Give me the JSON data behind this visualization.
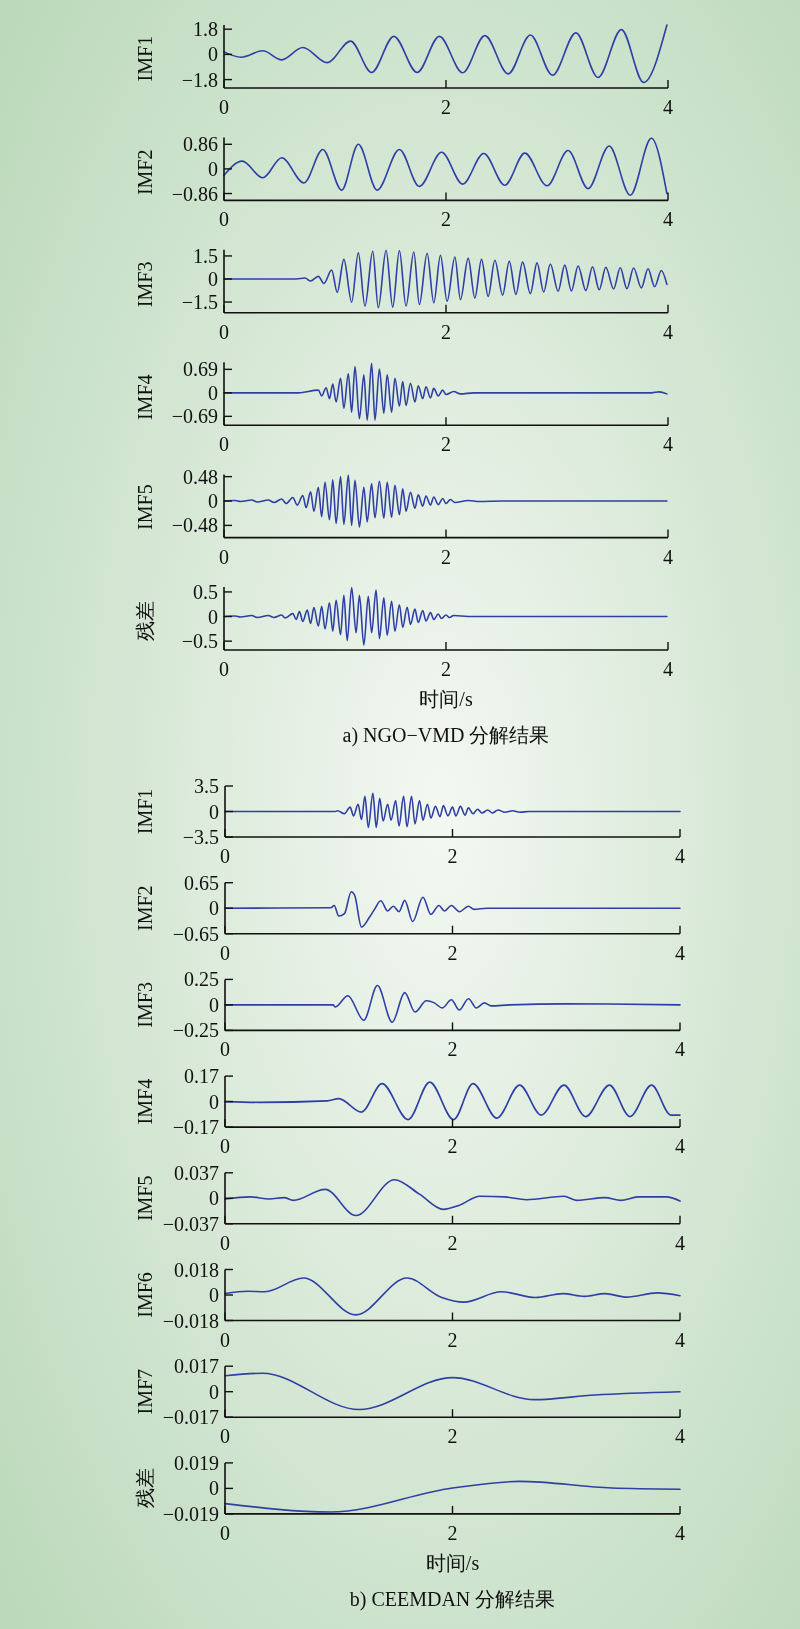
{
  "chart_data": [
    {
      "type": "line",
      "ylabel": "IMF1",
      "xlim": [
        0,
        4
      ],
      "xticks": [
        0,
        2,
        4
      ],
      "ylim": [
        -2.4,
        2.1
      ],
      "yticks": [
        -1.8,
        0,
        1.8
      ],
      "series": [
        {
          "color": "#2e3fa5",
          "x": [
            0,
            0.155,
            0.35,
            0.52,
            0.71,
            0.93,
            1.14,
            1.33,
            1.53,
            1.74,
            1.94,
            2.15,
            2.35,
            2.56,
            2.76,
            2.96,
            3.17,
            3.37,
            3.58,
            3.78,
            3.99
          ],
          "values": [
            0.18,
            -0.2,
            0.26,
            -0.39,
            0.49,
            -0.59,
            0.95,
            -1.29,
            1.29,
            -1.29,
            1.29,
            -1.31,
            1.34,
            -1.39,
            1.39,
            -1.49,
            1.54,
            -1.65,
            1.77,
            -2.0,
            2.1
          ]
        }
      ]
    },
    {
      "type": "line",
      "ylabel": "IMF2",
      "xlim": [
        0,
        4
      ],
      "xticks": [
        0,
        2,
        4
      ],
      "ylim": [
        -1.1,
        1.1
      ],
      "yticks": [
        -0.86,
        0,
        0.86
      ],
      "series": [
        {
          "color": "#2e3fa5",
          "x": [
            0,
            0.164,
            0.35,
            0.52,
            0.72,
            0.89,
            1.06,
            1.21,
            1.38,
            1.58,
            1.76,
            1.96,
            2.15,
            2.34,
            2.53,
            2.71,
            2.91,
            3.1,
            3.28,
            3.47,
            3.66,
            3.85,
            3.99
          ],
          "values": [
            -0.22,
            0.27,
            -0.31,
            0.39,
            -0.49,
            0.68,
            -0.74,
            0.86,
            -0.74,
            0.68,
            -0.61,
            0.58,
            -0.53,
            0.54,
            -0.57,
            0.55,
            -0.59,
            0.64,
            -0.69,
            0.8,
            -0.92,
            1.07,
            -0.86
          ]
        }
      ]
    },
    {
      "type": "line",
      "ylabel": "IMF3",
      "xlim": [
        0,
        4
      ],
      "xticks": [
        0,
        2,
        4
      ],
      "ylim": [
        -2.2,
        1.9
      ],
      "yticks": [
        -1.5,
        0,
        1.5
      ],
      "series": [
        {
          "color": "#2e3fa5",
          "x": [
            0,
            0.65,
            0.73,
            0.78,
            0.85,
            0.9,
            0.97,
            1.02,
            1.08,
            1.15,
            1.21,
            1.27,
            1.34,
            1.39,
            1.46,
            1.52,
            1.58,
            1.64,
            1.71,
            1.76,
            1.83,
            1.89,
            1.95,
            2.01,
            2.08,
            2.13,
            2.2,
            2.26,
            2.32,
            2.38,
            2.44,
            2.51,
            2.57,
            2.63,
            2.69,
            2.76,
            2.82,
            2.88,
            2.94,
            3.01,
            3.07,
            3.13,
            3.19,
            3.26,
            3.32,
            3.38,
            3.44,
            3.51,
            3.57,
            3.63,
            3.69,
            3.76,
            3.82,
            3.88,
            3.94,
            3.99
          ],
          "values": [
            0,
            0,
            0.06,
            -0.13,
            0.17,
            -0.29,
            0.59,
            -0.88,
            1.28,
            -1.51,
            1.7,
            -1.76,
            1.81,
            -1.87,
            1.87,
            -1.83,
            1.85,
            -1.76,
            1.76,
            -1.66,
            1.68,
            -1.55,
            1.55,
            -1.45,
            1.43,
            -1.34,
            1.34,
            -1.24,
            1.28,
            -1.13,
            1.22,
            -1.05,
            1.15,
            -1.0,
            1.1,
            -0.95,
            1.05,
            -0.85,
            0.98,
            -0.8,
            0.9,
            -0.78,
            0.85,
            -0.75,
            0.8,
            -0.7,
            0.76,
            -0.65,
            0.73,
            -0.63,
            0.72,
            -0.58,
            0.67,
            -0.5,
            0.55,
            -0.35
          ]
        }
      ]
    },
    {
      "type": "line",
      "ylabel": "IMF4",
      "xlim": [
        0,
        4
      ],
      "xticks": [
        0,
        2,
        4
      ],
      "ylim": [
        -0.95,
        0.9
      ],
      "yticks": [
        -0.69,
        0,
        0.69
      ],
      "series": [
        {
          "color": "#2e3fa5",
          "x": [
            0,
            0.67,
            0.85,
            0.88,
            0.92,
            0.95,
            0.98,
            1.01,
            1.05,
            1.08,
            1.12,
            1.15,
            1.18,
            1.22,
            1.26,
            1.29,
            1.33,
            1.36,
            1.4,
            1.44,
            1.47,
            1.51,
            1.54,
            1.58,
            1.61,
            1.64,
            1.68,
            1.72,
            1.75,
            1.79,
            1.82,
            1.86,
            1.89,
            1.93,
            1.97,
            2.0,
            2.07,
            2.13,
            2.25,
            3.85,
            3.92,
            3.99
          ],
          "values": [
            0,
            0,
            0.08,
            -0.09,
            0.15,
            -0.17,
            0.26,
            -0.27,
            0.43,
            -0.45,
            0.56,
            -0.57,
            0.77,
            -0.76,
            0.53,
            -0.8,
            0.87,
            -0.8,
            0.7,
            -0.6,
            0.53,
            -0.57,
            0.43,
            -0.39,
            0.33,
            -0.37,
            0.28,
            -0.27,
            0.21,
            -0.17,
            0.18,
            -0.15,
            0.13,
            -0.09,
            0.08,
            -0.05,
            0.04,
            -0.03,
            0,
            0,
            0.03,
            -0.03
          ]
        }
      ]
    },
    {
      "type": "line",
      "ylabel": "IMF5",
      "xlim": [
        0,
        4
      ],
      "xticks": [
        0,
        2,
        4
      ],
      "ylim": [
        -0.72,
        0.52
      ],
      "yticks": [
        -0.48,
        0,
        0.48
      ],
      "series": [
        {
          "color": "#2e3fa5",
          "x": [
            0,
            0.1,
            0.15,
            0.25,
            0.3,
            0.4,
            0.45,
            0.52,
            0.56,
            0.62,
            0.66,
            0.71,
            0.74,
            0.78,
            0.81,
            0.85,
            0.88,
            0.91,
            0.95,
            0.98,
            1.01,
            1.05,
            1.08,
            1.12,
            1.15,
            1.18,
            1.22,
            1.26,
            1.29,
            1.33,
            1.36,
            1.4,
            1.44,
            1.47,
            1.51,
            1.54,
            1.58,
            1.61,
            1.64,
            1.68,
            1.72,
            1.75,
            1.79,
            1.82,
            1.86,
            1.89,
            1.93,
            1.97,
            2.0,
            2.04,
            2.08,
            2.2,
            2.3,
            2.5,
            3.9,
            3.99
          ],
          "values": [
            0,
            0.01,
            -0.01,
            0.02,
            -0.02,
            0.02,
            -0.03,
            0.04,
            -0.05,
            0.07,
            -0.08,
            0.11,
            -0.13,
            0.18,
            -0.2,
            0.27,
            -0.31,
            0.37,
            -0.37,
            0.42,
            -0.44,
            0.48,
            -0.46,
            0.51,
            -0.48,
            0.41,
            -0.51,
            0.27,
            -0.41,
            0.34,
            -0.33,
            0.39,
            -0.34,
            0.37,
            -0.32,
            0.31,
            -0.27,
            0.24,
            -0.2,
            0.17,
            -0.14,
            0.12,
            -0.1,
            0.1,
            -0.08,
            0.08,
            -0.07,
            0.05,
            -0.05,
            0.03,
            -0.03,
            0.01,
            -0.01,
            0,
            0,
            0
          ]
        }
      ]
    },
    {
      "type": "line",
      "ylabel": "残差",
      "xlabel": "时间/s",
      "annotations": [
        "a) NGO−VMD 分解结果"
      ],
      "xlim": [
        0,
        4
      ],
      "xticks": [
        0,
        2,
        4
      ],
      "ylim": [
        -0.68,
        0.6
      ],
      "yticks": [
        -0.5,
        0,
        0.5
      ],
      "series": [
        {
          "color": "#2e3fa5",
          "x": [
            0,
            0.1,
            0.15,
            0.25,
            0.3,
            0.4,
            0.45,
            0.52,
            0.55,
            0.62,
            0.65,
            0.68,
            0.71,
            0.75,
            0.78,
            0.81,
            0.85,
            0.88,
            0.91,
            0.95,
            0.98,
            1.01,
            1.05,
            1.08,
            1.11,
            1.15,
            1.19,
            1.22,
            1.26,
            1.3,
            1.33,
            1.37,
            1.4,
            1.44,
            1.47,
            1.51,
            1.54,
            1.58,
            1.61,
            1.65,
            1.68,
            1.72,
            1.75,
            1.79,
            1.82,
            1.86,
            1.89,
            1.93,
            1.96,
            2.0,
            2.03,
            2.07,
            2.2,
            3.9,
            3.99
          ],
          "values": [
            0,
            0.01,
            -0.01,
            0.02,
            -0.02,
            0.02,
            -0.02,
            0.03,
            -0.03,
            0.06,
            -0.06,
            0.1,
            -0.1,
            0.13,
            -0.14,
            0.18,
            -0.19,
            0.21,
            -0.25,
            0.28,
            -0.3,
            0.33,
            -0.37,
            0.43,
            -0.49,
            0.59,
            -0.33,
            0.43,
            -0.58,
            0.41,
            -0.33,
            0.54,
            -0.45,
            0.38,
            -0.38,
            0.31,
            -0.3,
            0.24,
            -0.22,
            0.19,
            -0.16,
            0.15,
            -0.12,
            0.12,
            -0.09,
            0.08,
            -0.06,
            0.05,
            -0.04,
            0.03,
            -0.02,
            0.02,
            0,
            0,
            0
          ]
        }
      ]
    },
    {
      "type": "line",
      "ylabel": "IMF1",
      "xlim": [
        0,
        4
      ],
      "xticks": [
        0,
        2,
        4
      ],
      "ylim": [
        -3.5,
        3.5
      ],
      "yticks": [
        -3.5,
        0,
        3.5
      ],
      "series": [
        {
          "color": "#2e3fa5",
          "x": [
            0,
            0.97,
            0.99,
            1.05,
            1.1,
            1.13,
            1.17,
            1.2,
            1.23,
            1.26,
            1.3,
            1.33,
            1.36,
            1.39,
            1.43,
            1.46,
            1.5,
            1.53,
            1.57,
            1.6,
            1.64,
            1.67,
            1.71,
            1.74,
            1.78,
            1.81,
            1.85,
            1.89,
            1.92,
            1.96,
            2.0,
            2.03,
            2.07,
            2.11,
            2.14,
            2.18,
            2.22,
            2.26,
            2.31,
            2.35,
            2.4,
            2.46,
            2.53,
            2.59,
            2.67,
            2.75,
            2.85,
            4
          ],
          "values": [
            0,
            0,
            0.1,
            -0.3,
            0.6,
            -0.6,
            1.0,
            -1.1,
            2.1,
            -2.2,
            2.5,
            -2.2,
            1.8,
            -1.3,
            1.0,
            -1.2,
            1.5,
            -2.0,
            2.1,
            -2.1,
            2.1,
            -1.7,
            1.5,
            -1.2,
            1.0,
            -0.9,
            0.7,
            -0.7,
            0.8,
            -0.6,
            0.6,
            -0.6,
            0.7,
            -0.5,
            0.5,
            -0.3,
            0.3,
            -0.2,
            0.2,
            -0.2,
            0.2,
            -0.1,
            0.1,
            -0.1,
            0,
            0,
            0,
            0
          ]
        }
      ]
    },
    {
      "type": "line",
      "ylabel": "IMF2",
      "xlim": [
        0,
        4
      ],
      "xticks": [
        0,
        2,
        4
      ],
      "ylim": [
        -0.65,
        0.65
      ],
      "yticks": [
        -0.65,
        0,
        0.65
      ],
      "series": [
        {
          "color": "#2e3fa5",
          "x": [
            0,
            0.93,
            0.96,
            1.0,
            1.05,
            1.11,
            1.14,
            1.2,
            1.27,
            1.31,
            1.37,
            1.43,
            1.48,
            1.53,
            1.58,
            1.65,
            1.74,
            1.81,
            1.88,
            1.93,
            1.99,
            2.06,
            2.14,
            2.19,
            2.3,
            4
          ],
          "values": [
            0,
            0.01,
            0.07,
            -0.2,
            -0.14,
            0.42,
            0.33,
            -0.48,
            -0.23,
            -0.05,
            0.19,
            -0.07,
            0.05,
            -0.09,
            0.2,
            -0.34,
            0.28,
            -0.16,
            0.07,
            -0.07,
            0.07,
            -0.09,
            0.05,
            -0.03,
            0,
            0
          ]
        }
      ]
    },
    {
      "type": "line",
      "ylabel": "IMF3",
      "xlim": [
        0,
        4
      ],
      "xticks": [
        0,
        2,
        4
      ],
      "ylim": [
        -0.25,
        0.25
      ],
      "yticks": [
        -0.25,
        0,
        0.25
      ],
      "series": [
        {
          "color": "#2e3fa5",
          "x": [
            0,
            0.5,
            0.95,
            0.97,
            1.08,
            1.22,
            1.34,
            1.47,
            1.58,
            1.67,
            1.77,
            1.84,
            1.91,
            1.99,
            2.06,
            2.14,
            2.21,
            2.28,
            2.34,
            2.5,
            3.0,
            4.0
          ],
          "values": [
            0,
            0,
            0,
            -0.02,
            0.09,
            -0.15,
            0.19,
            -0.17,
            0.12,
            -0.07,
            0.04,
            0.02,
            -0.03,
            0.05,
            -0.05,
            0.06,
            -0.03,
            0.02,
            -0.01,
            0,
            0.01,
            0
          ]
        }
      ]
    },
    {
      "type": "line",
      "ylabel": "IMF4",
      "xlim": [
        0,
        4
      ],
      "xticks": [
        0,
        2,
        4
      ],
      "ylim": [
        -0.17,
        0.17
      ],
      "yticks": [
        -0.17,
        0,
        0.17
      ],
      "series": [
        {
          "color": "#2e3fa5",
          "x": [
            0,
            0.3,
            0.9,
            1.0,
            1.2,
            1.38,
            1.61,
            1.8,
            2.01,
            2.18,
            2.39,
            2.59,
            2.78,
            2.98,
            3.17,
            3.38,
            3.56,
            3.75,
            3.92,
            4.0
          ],
          "values": [
            0,
            -0.005,
            0.005,
            0.02,
            -0.07,
            0.12,
            -0.12,
            0.13,
            -0.12,
            0.12,
            -0.11,
            0.11,
            -0.09,
            0.11,
            -0.1,
            0.11,
            -0.1,
            0.11,
            -0.09,
            -0.09
          ]
        }
      ]
    },
    {
      "type": "line",
      "ylabel": "IMF5",
      "xlim": [
        0,
        4
      ],
      "xticks": [
        0,
        2,
        4
      ],
      "ylim": [
        -0.037,
        0.037
      ],
      "yticks": [
        -0.037,
        0,
        0.037
      ],
      "series": [
        {
          "color": "#2e3fa5",
          "x": [
            0,
            0.22,
            0.39,
            0.52,
            0.6,
            0.88,
            1.15,
            1.49,
            1.71,
            1.92,
            2.06,
            2.24,
            2.46,
            2.65,
            2.98,
            3.09,
            3.34,
            3.48,
            3.63,
            3.88,
            4.0
          ],
          "values": [
            -0.001,
            0.002,
            -0.001,
            0.001,
            -0.003,
            0.013,
            -0.025,
            0.027,
            0.006,
            -0.016,
            -0.01,
            0.003,
            0.002,
            -0.002,
            0.003,
            -0.003,
            0.001,
            -0.003,
            0.002,
            0.002,
            -0.004
          ]
        }
      ]
    },
    {
      "type": "line",
      "ylabel": "IMF6",
      "xlim": [
        0,
        4
      ],
      "xticks": [
        0,
        2,
        4
      ],
      "ylim": [
        -0.018,
        0.018
      ],
      "yticks": [
        -0.018,
        0,
        0.018
      ],
      "series": [
        {
          "color": "#2e3fa5",
          "x": [
            0,
            0.2,
            0.35,
            0.69,
            1.15,
            1.6,
            1.9,
            2.1,
            2.43,
            2.73,
            2.97,
            3.16,
            3.34,
            3.53,
            3.8,
            4.0
          ],
          "values": [
            0.001,
            0.0026,
            0.0023,
            0.012,
            -0.014,
            0.012,
            -0.0015,
            -0.005,
            0.0023,
            -0.0018,
            0.001,
            -0.001,
            0.001,
            -0.0015,
            0.0015,
            -0.0005
          ]
        }
      ]
    },
    {
      "type": "line",
      "ylabel": "IMF7",
      "xlim": [
        0,
        4
      ],
      "xticks": [
        0,
        2,
        4
      ],
      "ylim": [
        -0.017,
        0.017
      ],
      "yticks": [
        -0.017,
        0,
        0.017
      ],
      "series": [
        {
          "color": "#2e3fa5",
          "x": [
            0,
            0.33,
            1.18,
            2.0,
            2.72,
            3.25,
            4.0
          ],
          "values": [
            0.0106,
            0.0123,
            -0.0119,
            0.0094,
            -0.0053,
            -0.0022,
            0
          ]
        }
      ]
    },
    {
      "type": "line",
      "ylabel": "残差",
      "xlabel": "时间/s",
      "annotations": [
        "b) CEEMDAN 分解结果"
      ],
      "xlim": [
        0,
        4
      ],
      "xticks": [
        0,
        2,
        4
      ],
      "ylim": [
        -0.019,
        0.019
      ],
      "yticks": [
        -0.019,
        0,
        0.019
      ],
      "series": [
        {
          "color": "#2e3fa5",
          "x": [
            0,
            0.93,
            2.0,
            2.59,
            3.4,
            4.0
          ],
          "values": [
            -0.0113,
            -0.0176,
            0.0003,
            0.0052,
            0.0003,
            -0.0006
          ]
        }
      ]
    }
  ]
}
